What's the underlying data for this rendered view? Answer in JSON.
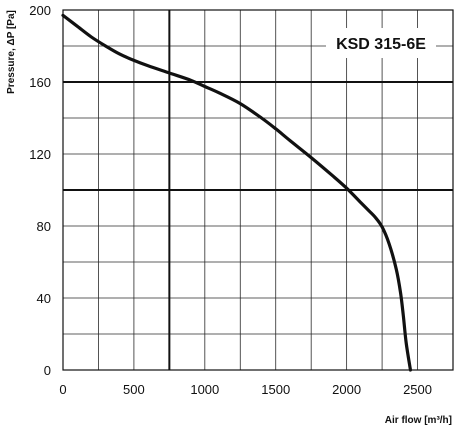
{
  "chart_data": {
    "type": "line",
    "title": "",
    "model_label": "KSD 315-6E",
    "xlabel": "Air flow [m³/h]",
    "ylabel": "Pressure, ΔP [Pa]",
    "xlim": [
      0,
      2750
    ],
    "ylim": [
      0,
      200
    ],
    "x_ticks": [
      "0",
      "500",
      "1000",
      "1500",
      "2000",
      "2500"
    ],
    "y_ticks": [
      "0",
      "40",
      "80",
      "120",
      "160",
      "200"
    ],
    "grid": true,
    "x": [
      0,
      100,
      200,
      300,
      400,
      500,
      600,
      750,
      900,
      1000,
      1100,
      1250,
      1400,
      1500,
      1600,
      1750,
      1900,
      2000,
      2100,
      2150,
      2200,
      2250,
      2300,
      2350,
      2380,
      2400,
      2420,
      2450
    ],
    "series": [
      {
        "values": [
          197,
          191,
          185,
          180,
          175.5,
          172,
          169,
          165,
          161,
          157.5,
          154,
          148,
          140,
          134,
          127.5,
          118,
          108,
          101,
          93,
          89,
          85,
          79.5,
          70,
          56,
          43,
          30,
          15,
          0
        ]
      }
    ]
  }
}
